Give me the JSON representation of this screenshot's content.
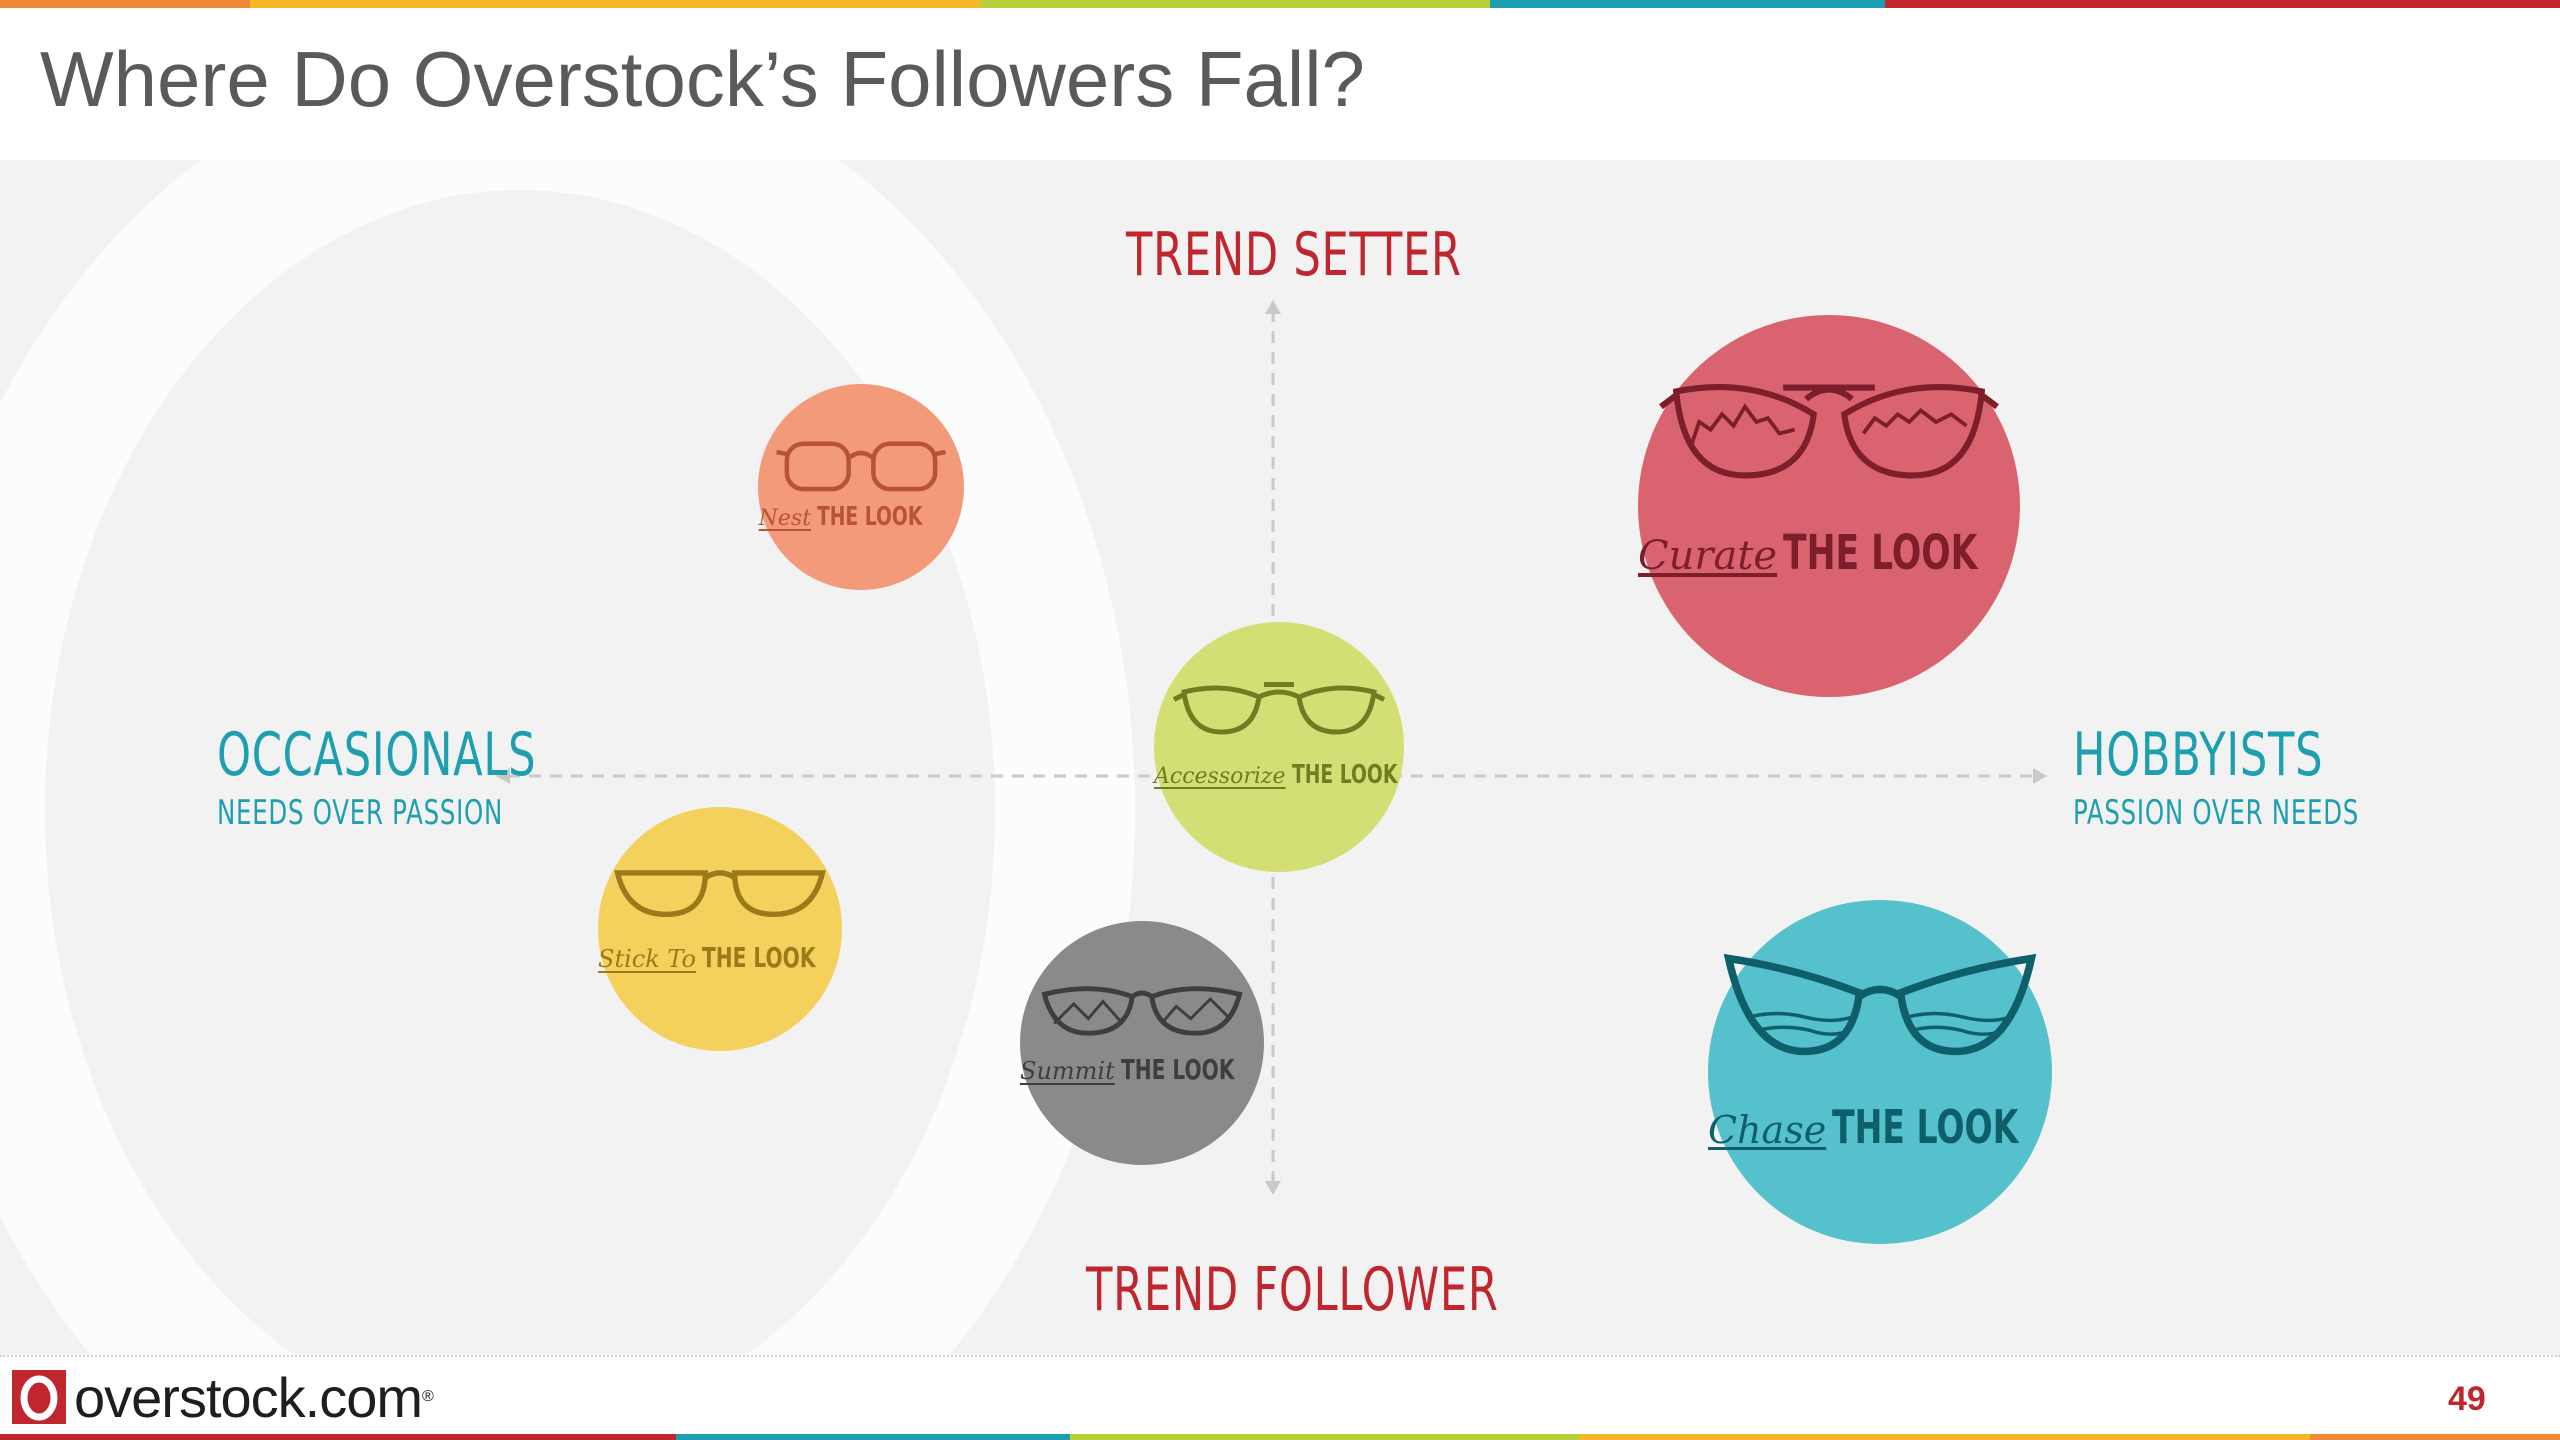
{
  "title": "Where Do Overstock’s Followers Fall?",
  "stripe_colors": [
    "#f0883a",
    "#f6b728",
    "#b9cf3a",
    "#1d9fb0",
    "#c0262e"
  ],
  "axes": {
    "top": "TREND SETTER",
    "bottom": "TREND FOLLOWER",
    "left": {
      "title": "OCCASIONALS",
      "sub": "NEEDS OVER PASSION"
    },
    "right": {
      "title": "HOBBYISTS",
      "sub": "PASSION OVER NEEDS"
    }
  },
  "bubbles": [
    {
      "script": "Nest",
      "caps": "THE LOOK",
      "color": "#f39a7b",
      "text_color": "#b85436"
    },
    {
      "script": "Curate",
      "caps": "THE LOOK",
      "color": "#d96470",
      "text_color": "#7d1f2a"
    },
    {
      "script": "Accessorize",
      "caps": "THE LOOK",
      "color": "#d3df74",
      "text_color": "#6f7d22"
    },
    {
      "script": "Stick To",
      "caps": "THE LOOK",
      "color": "#f4d05c",
      "text_color": "#9a7a1a"
    },
    {
      "script": "Summit",
      "caps": "THE LOOK",
      "color": "#8a8a8c",
      "text_color": "#3e3e40"
    },
    {
      "script": "Chase",
      "caps": "THE LOOK",
      "color": "#54c1cc",
      "text_color": "#0f5f6a"
    }
  ],
  "footer": {
    "logo_text": "overstock.com",
    "logo_reg": "®",
    "page_number": "49"
  },
  "icons": [
    "glasses-icon",
    "overstock-logo-icon"
  ]
}
